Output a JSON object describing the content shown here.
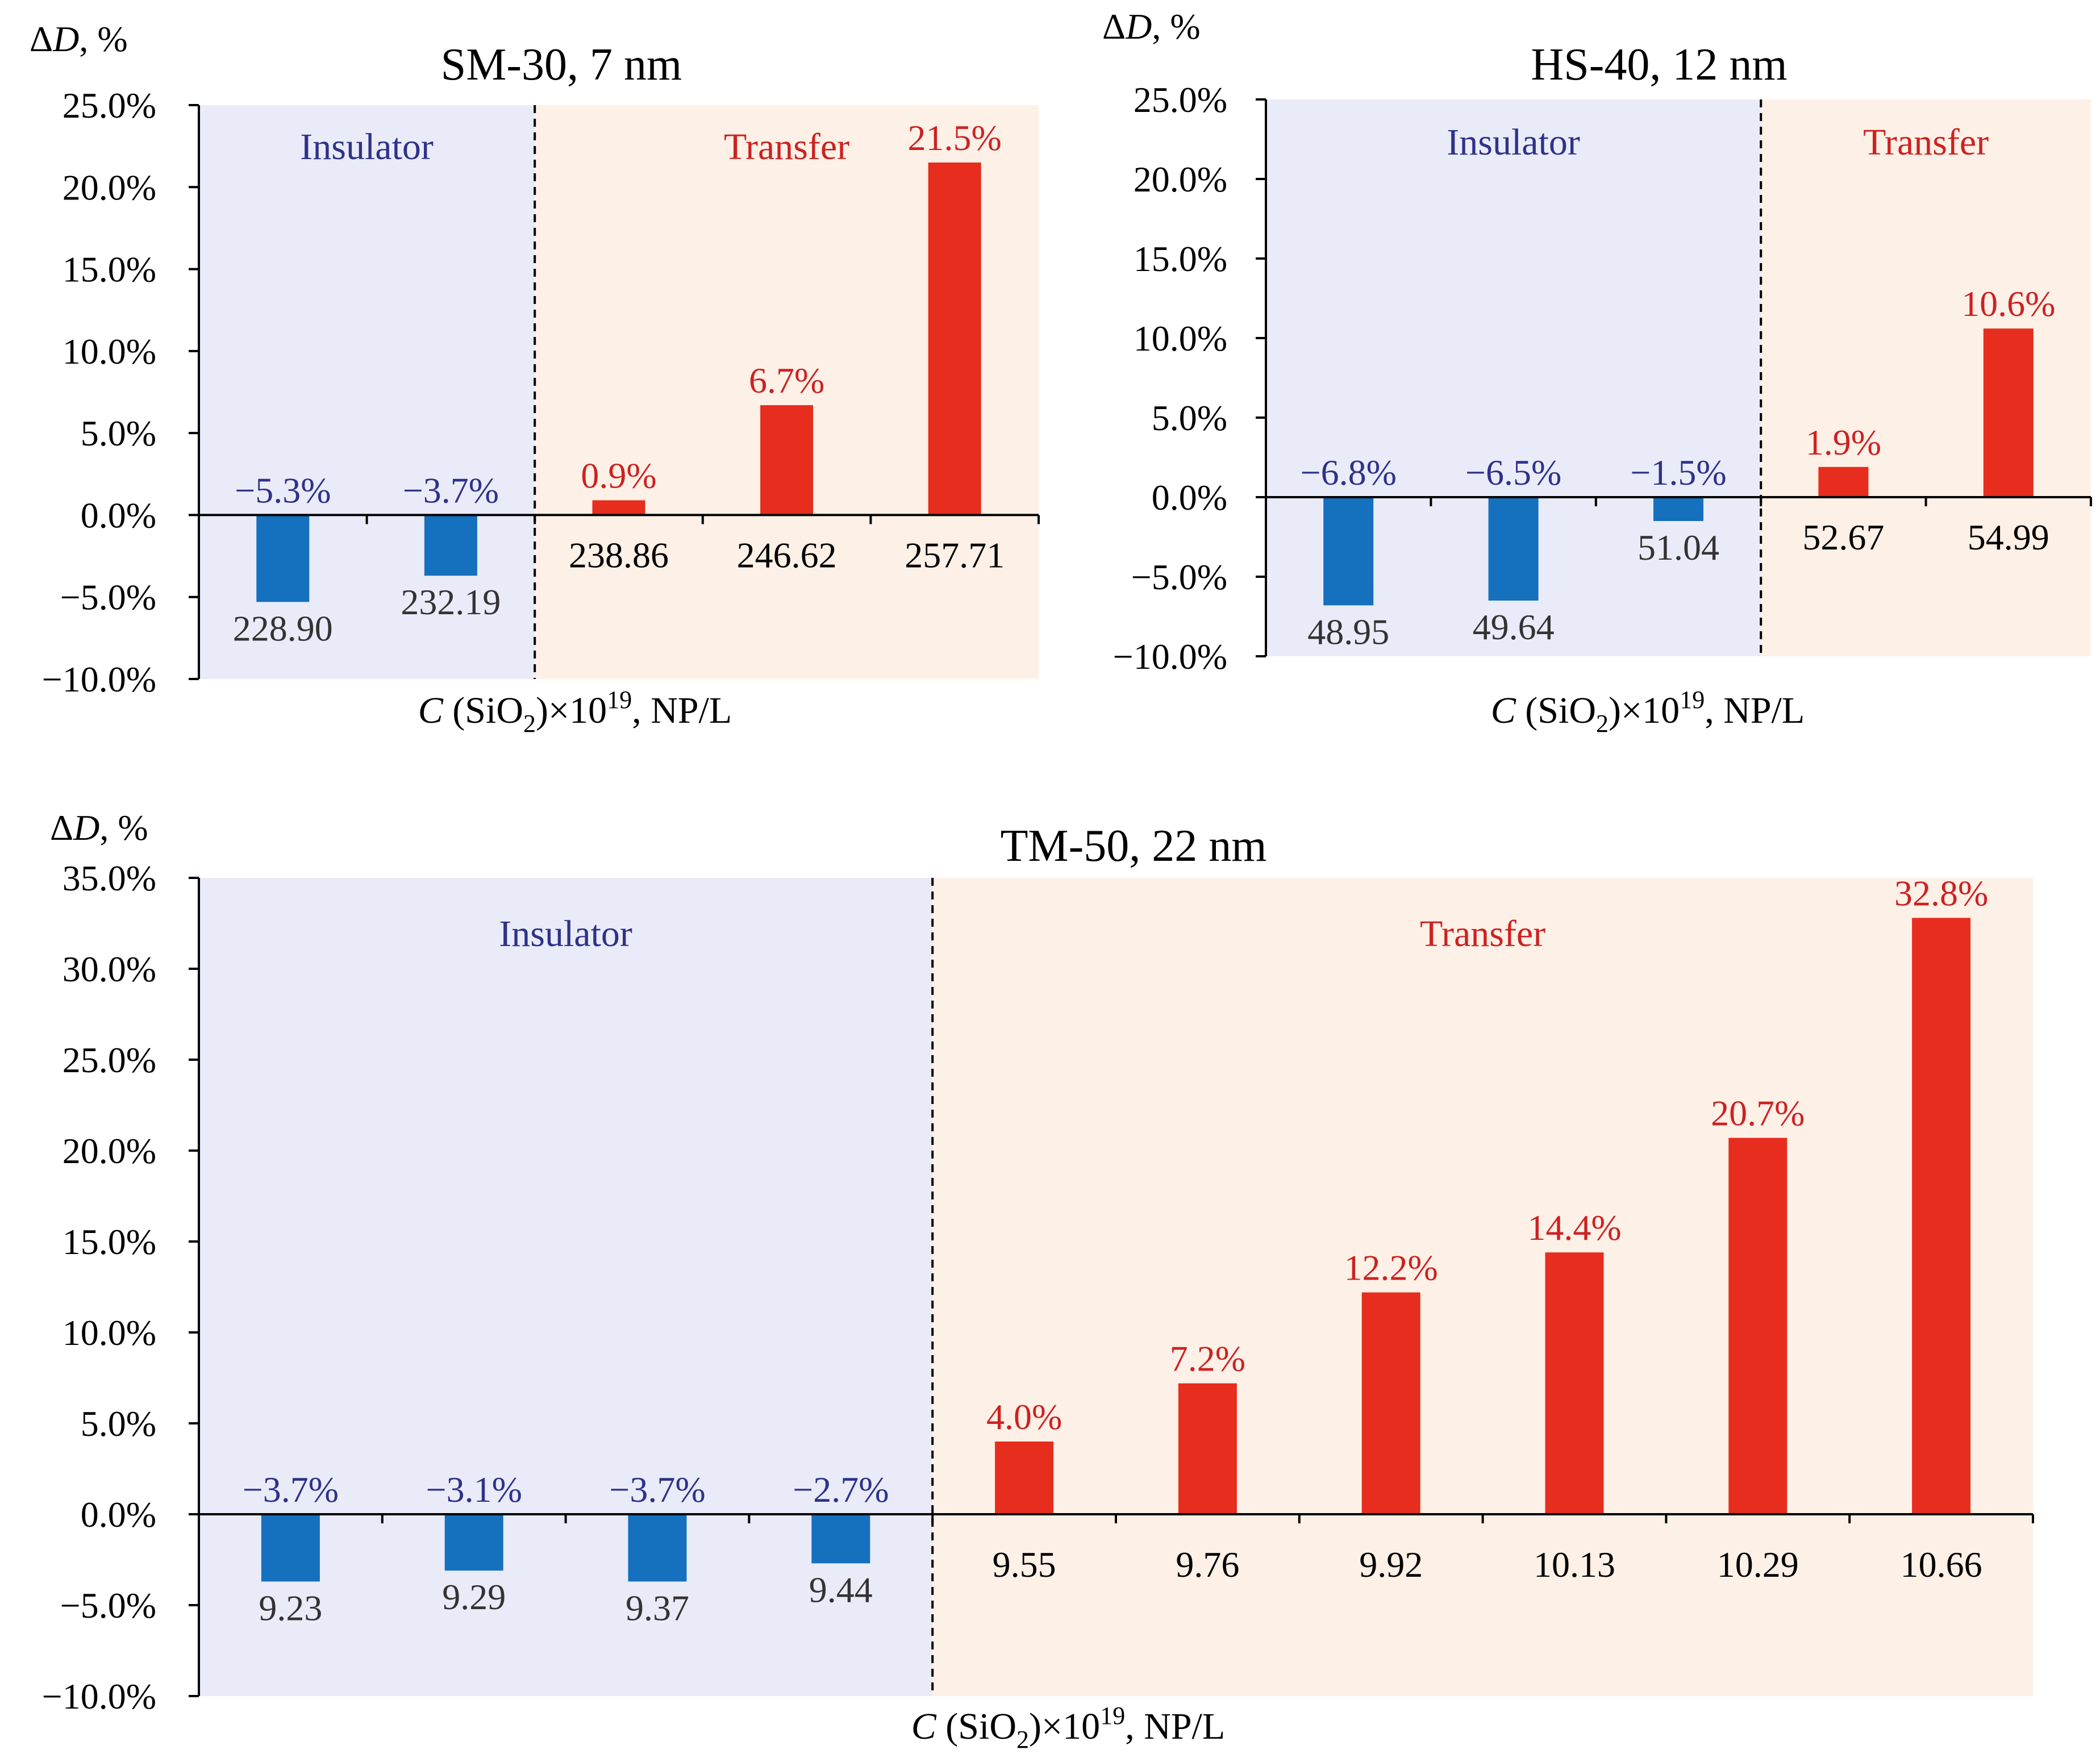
{
  "colors": {
    "insulator_bg": "#E9EBF8",
    "transfer_bg": "#FDF0E6",
    "negative_bar": "#1570BE",
    "positive_bar": "#E62D1E",
    "insulator_text": "#2E3289",
    "transfer_text": "#CC2222",
    "axis": "#000000",
    "category_label_negative": "#333333",
    "category_label_positive": "#000000"
  },
  "chart_data": [
    {
      "type": "bar",
      "title": "SM-30,  7 nm",
      "ylabel_prefix": "Δ",
      "ylabel_var": "D",
      "ylabel_suffix": ", %",
      "xlabel_var": "C",
      "xlabel_pre": " (SiO",
      "xlabel_sub": "2",
      "xlabel_mid": ")×10",
      "xlabel_sup": "19",
      "xlabel_post": ", NP/L",
      "regions": {
        "left": "Insulator",
        "right": "Transfer"
      },
      "split_after_index": 1,
      "ylim": [
        -10,
        25
      ],
      "ytick_step": 5,
      "yticks": [
        "−10.0%",
        "−5.0%",
        "0.0%",
        "5.0%",
        "10.0%",
        "15.0%",
        "20.0%",
        "25.0%"
      ],
      "categories": [
        "228.90",
        "232.19",
        "238.86",
        "246.62",
        "257.71"
      ],
      "values": [
        -5.3,
        -3.7,
        0.9,
        6.7,
        21.5
      ],
      "value_labels": [
        "−5.3%",
        "−3.7%",
        "0.9%",
        "6.7%",
        "21.5%"
      ]
    },
    {
      "type": "bar",
      "title": "HS-40,  12 nm",
      "ylabel_prefix": "Δ",
      "ylabel_var": "D",
      "ylabel_suffix": ", %",
      "xlabel_var": "C",
      "xlabel_pre": " (SiO",
      "xlabel_sub": "2",
      "xlabel_mid": ")×10",
      "xlabel_sup": "19",
      "xlabel_post": ", NP/L",
      "regions": {
        "left": "Insulator",
        "right": "Transfer"
      },
      "split_after_index": 2,
      "ylim": [
        -10,
        25
      ],
      "ytick_step": 5,
      "yticks": [
        "−10.0%",
        "−5.0%",
        "0.0%",
        "5.0%",
        "10.0%",
        "15.0%",
        "20.0%",
        "25.0%"
      ],
      "categories": [
        "48.95",
        "49.64",
        "51.04",
        "52.67",
        "54.99"
      ],
      "values": [
        -6.8,
        -6.5,
        -1.5,
        1.9,
        10.6
      ],
      "value_labels": [
        "−6.8%",
        "−6.5%",
        "−1.5%",
        "1.9%",
        "10.6%"
      ]
    },
    {
      "type": "bar",
      "title": "TM-50,  22 nm",
      "ylabel_prefix": "Δ",
      "ylabel_var": "D",
      "ylabel_suffix": ", %",
      "xlabel_var": "C",
      "xlabel_pre": " (SiO",
      "xlabel_sub": "2",
      "xlabel_mid": ")×10",
      "xlabel_sup": "19",
      "xlabel_post": ", NP/L",
      "regions": {
        "left": "Insulator",
        "right": "Transfer"
      },
      "split_after_index": 3,
      "ylim": [
        -10,
        35
      ],
      "ytick_step": 5,
      "yticks": [
        "−10.0%",
        "−5.0%",
        "0.0%",
        "5.0%",
        "10.0%",
        "15.0%",
        "20.0%",
        "25.0%",
        "30.0%",
        "35.0%"
      ],
      "categories": [
        "9.23",
        "9.29",
        "9.37",
        "9.44",
        "9.55",
        "9.76",
        "9.92",
        "10.13",
        "10.29",
        "10.66"
      ],
      "values": [
        -3.7,
        -3.1,
        -3.7,
        -2.7,
        4.0,
        7.2,
        12.2,
        14.4,
        20.7,
        32.8
      ],
      "value_labels": [
        "−3.7%",
        "−3.1%",
        "−3.7%",
        "−2.7%",
        "4.0%",
        "7.2%",
        "12.2%",
        "14.4%",
        "20.7%",
        "32.8%"
      ]
    }
  ]
}
